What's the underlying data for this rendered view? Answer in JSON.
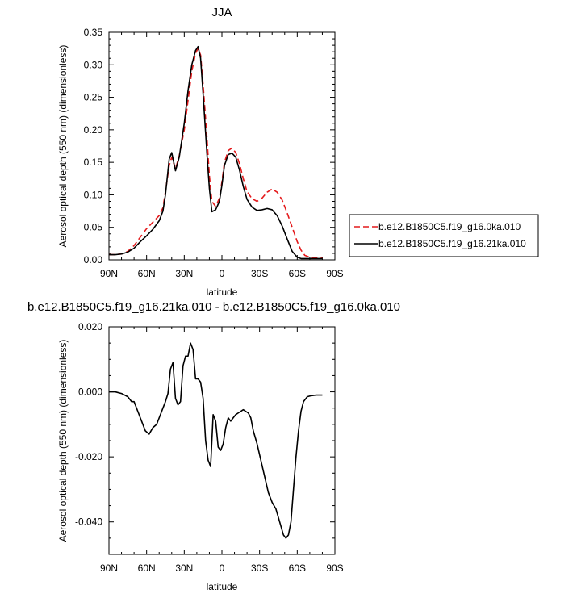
{
  "chart_data": [
    {
      "type": "line",
      "title": "JJA",
      "xlabel": "latitude",
      "ylabel": "Aerosol optical depth (550 nm) (dimensionless)",
      "xlim": [
        90,
        -90
      ],
      "ylim": [
        0,
        0.35
      ],
      "x_ticks": [
        90,
        60,
        30,
        0,
        -30,
        -60,
        -90
      ],
      "x_tick_labels": [
        "90N",
        "60N",
        "30N",
        "0",
        "30S",
        "60S",
        "90S"
      ],
      "y_ticks": [
        0,
        0.05,
        0.1,
        0.15,
        0.2,
        0.25,
        0.3,
        0.35
      ],
      "y_tick_labels": [
        "0.00",
        "0.05",
        "0.10",
        "0.15",
        "0.20",
        "0.25",
        "0.30",
        "0.35"
      ],
      "legend_position": "outside-right",
      "series": [
        {
          "name": "b.e12.B1850C5.f19_g16.0ka.010",
          "color": "#e41a1c",
          "style": "dashed",
          "x": [
            90,
            85,
            80,
            75,
            70,
            65,
            60,
            55,
            50,
            47,
            45,
            42,
            40,
            37,
            34,
            30,
            27,
            24,
            21,
            19,
            17,
            15,
            12,
            10,
            8,
            5,
            2,
            0,
            -2,
            -5,
            -8,
            -11,
            -14,
            -17,
            -20,
            -24,
            -28,
            -32,
            -36,
            -40,
            -44,
            -48,
            -52,
            -56,
            -60,
            -63,
            -66,
            -70,
            -75,
            -80
          ],
          "y": [
            0.008,
            0.008,
            0.009,
            0.013,
            0.022,
            0.035,
            0.048,
            0.058,
            0.068,
            0.08,
            0.105,
            0.145,
            0.158,
            0.14,
            0.16,
            0.2,
            0.245,
            0.29,
            0.318,
            0.325,
            0.315,
            0.27,
            0.19,
            0.13,
            0.09,
            0.082,
            0.095,
            0.12,
            0.15,
            0.168,
            0.172,
            0.165,
            0.148,
            0.125,
            0.105,
            0.094,
            0.09,
            0.095,
            0.104,
            0.109,
            0.104,
            0.092,
            0.072,
            0.05,
            0.028,
            0.015,
            0.007,
            0.004,
            0.003,
            0.003
          ]
        },
        {
          "name": "b.e12.B1850C5.f19_g16.21ka.010",
          "color": "#000000",
          "style": "solid",
          "x": [
            90,
            85,
            80,
            75,
            70,
            65,
            60,
            55,
            50,
            47,
            45,
            42,
            40,
            37,
            34,
            30,
            27,
            24,
            21,
            19,
            17,
            15,
            12,
            10,
            8,
            5,
            2,
            0,
            -2,
            -5,
            -8,
            -11,
            -14,
            -17,
            -20,
            -24,
            -28,
            -32,
            -36,
            -40,
            -44,
            -48,
            -52,
            -56,
            -60,
            -63,
            -66,
            -70,
            -75,
            -80
          ],
          "y": [
            0.008,
            0.008,
            0.009,
            0.012,
            0.018,
            0.028,
            0.037,
            0.047,
            0.06,
            0.075,
            0.1,
            0.155,
            0.165,
            0.137,
            0.158,
            0.21,
            0.26,
            0.3,
            0.322,
            0.328,
            0.31,
            0.255,
            0.165,
            0.11,
            0.074,
            0.077,
            0.09,
            0.115,
            0.145,
            0.162,
            0.164,
            0.158,
            0.138,
            0.113,
            0.093,
            0.081,
            0.076,
            0.077,
            0.079,
            0.077,
            0.068,
            0.052,
            0.032,
            0.013,
            0.004,
            0.002,
            0.002,
            0.002,
            0.002,
            0.002
          ]
        }
      ]
    },
    {
      "type": "line",
      "title": "b.e12.B1850C5.f19_g16.21ka.010 - b.e12.B1850C5.f19_g16.0ka.010",
      "xlabel": "latitude",
      "ylabel": "Aerosol optical depth (550 nm) (dimensionless)",
      "xlim": [
        90,
        -90
      ],
      "ylim": [
        -0.05,
        0.02
      ],
      "x_ticks": [
        90,
        60,
        30,
        0,
        -30,
        -60,
        -90
      ],
      "x_tick_labels": [
        "90N",
        "60N",
        "30N",
        "0",
        "30S",
        "60S",
        "90S"
      ],
      "y_ticks": [
        -0.04,
        -0.02,
        0,
        0.02
      ],
      "y_tick_labels": [
        "-0.040",
        "-0.020",
        "0.000",
        "0.020"
      ],
      "series": [
        {
          "color": "#000000",
          "style": "solid",
          "x": [
            90,
            85,
            80,
            75,
            72,
            70,
            67,
            64,
            61,
            58,
            55,
            52,
            49,
            47,
            45,
            43,
            41,
            39,
            37,
            35,
            33,
            31,
            29,
            27,
            25,
            23,
            21,
            19,
            17,
            15,
            13,
            11,
            9,
            7,
            5,
            3,
            1,
            -1,
            -3,
            -5,
            -7,
            -9,
            -11,
            -13,
            -15,
            -17,
            -19,
            -21,
            -23,
            -25,
            -28,
            -31,
            -34,
            -37,
            -40,
            -43,
            -46,
            -49,
            -51,
            -53,
            -55,
            -57,
            -59,
            -61,
            -63,
            -65,
            -68,
            -71,
            -75,
            -80
          ],
          "y": [
            0,
            0,
            -0.0005,
            -0.0015,
            -0.003,
            -0.003,
            -0.006,
            -0.009,
            -0.012,
            -0.013,
            -0.011,
            -0.01,
            -0.007,
            -0.005,
            -0.003,
            -0.0005,
            0.007,
            0.009,
            -0.002,
            -0.004,
            -0.003,
            0.008,
            0.011,
            0.011,
            0.015,
            0.013,
            0.004,
            0.004,
            0.003,
            -0.002,
            -0.015,
            -0.021,
            -0.023,
            -0.007,
            -0.009,
            -0.017,
            -0.018,
            -0.016,
            -0.011,
            -0.008,
            -0.009,
            -0.008,
            -0.007,
            -0.0065,
            -0.006,
            -0.0055,
            -0.006,
            -0.0065,
            -0.008,
            -0.012,
            -0.016,
            -0.021,
            -0.026,
            -0.031,
            -0.034,
            -0.036,
            -0.04,
            -0.044,
            -0.045,
            -0.044,
            -0.04,
            -0.03,
            -0.02,
            -0.012,
            -0.006,
            -0.003,
            -0.0015,
            -0.0012,
            -0.001,
            -0.001
          ]
        }
      ]
    }
  ]
}
